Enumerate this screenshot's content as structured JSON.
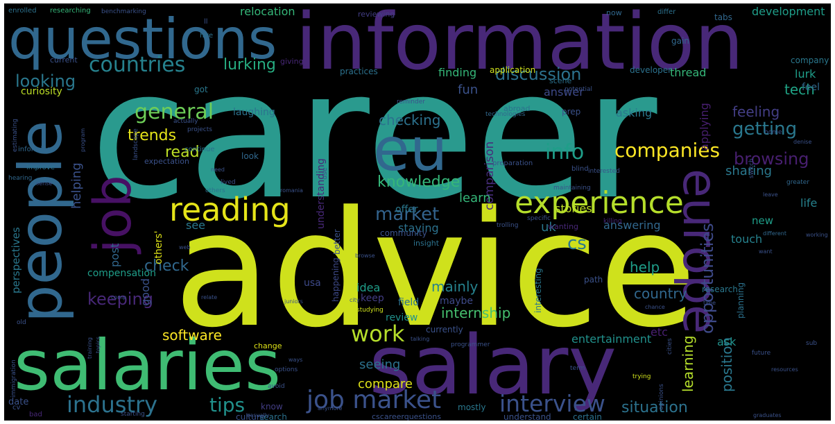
{
  "palette": {
    "canvas_bg": "#000000",
    "page_bg": "#ffffff"
  },
  "words": [
    {
      "text": "career",
      "color": "#2a9a8e"
    },
    {
      "text": "advice",
      "color": "#cfe11c"
    },
    {
      "text": "information",
      "color": "#482878"
    },
    {
      "text": "salary",
      "color": "#482878"
    },
    {
      "text": "salaries",
      "color": "#3fbc73"
    },
    {
      "text": "questions",
      "color": "#31688e"
    },
    {
      "text": "people",
      "color": "#31688e"
    },
    {
      "text": "job",
      "color": "#471164"
    },
    {
      "text": "europe",
      "color": "#482878"
    },
    {
      "text": "eu",
      "color": "#31688e"
    },
    {
      "text": "experience",
      "color": "#b5de2b"
    },
    {
      "text": "reading",
      "color": "#e5e419"
    },
    {
      "text": "job market",
      "color": "#3b528b"
    },
    {
      "text": "industry",
      "color": "#2c728e"
    },
    {
      "text": "interview",
      "color": "#3b528b"
    },
    {
      "text": "countries",
      "color": "#26828e"
    },
    {
      "text": "general",
      "color": "#6ece58"
    },
    {
      "text": "companies",
      "color": "#fde725"
    },
    {
      "text": "market",
      "color": "#33638d"
    },
    {
      "text": "info",
      "color": "#1f9e89"
    },
    {
      "text": "opportunities",
      "color": "#3e4a89"
    },
    {
      "text": "discussion",
      "color": "#2c728e"
    },
    {
      "text": "work",
      "color": "#b5de2b"
    },
    {
      "text": "tips",
      "color": "#21918c"
    },
    {
      "text": "knowledge",
      "color": "#35b779"
    },
    {
      "text": "getting",
      "color": "#2a788e"
    },
    {
      "text": "browsing",
      "color": "#481f70"
    },
    {
      "text": "looking",
      "color": "#2a788e"
    },
    {
      "text": "lurking",
      "color": "#27ad81"
    },
    {
      "text": "keeping",
      "color": "#482878"
    },
    {
      "text": "cs",
      "color": "#2a788e"
    },
    {
      "text": "checking",
      "color": "#2c728e"
    },
    {
      "text": "trends",
      "color": "#e5e419"
    },
    {
      "text": "read",
      "color": "#bddf26"
    },
    {
      "text": "feeling",
      "color": "#433e85"
    },
    {
      "text": "sharing",
      "color": "#2a788e"
    },
    {
      "text": "compare",
      "color": "#dfe318"
    },
    {
      "text": "situation",
      "color": "#2c728e"
    },
    {
      "text": "software",
      "color": "#fde725"
    },
    {
      "text": "internship",
      "color": "#46c06f"
    },
    {
      "text": "learning",
      "color": "#b5de2b"
    },
    {
      "text": "position",
      "color": "#2a788e"
    },
    {
      "text": "tech",
      "color": "#20a486"
    },
    {
      "text": "check",
      "color": "#31688e"
    },
    {
      "text": "helping",
      "color": "#3b528b"
    },
    {
      "text": "comparison",
      "color": "#472d7b"
    },
    {
      "text": "seeing",
      "color": "#2c728e"
    },
    {
      "text": "learn",
      "color": "#35b779"
    },
    {
      "text": "country",
      "color": "#31688e"
    },
    {
      "text": "mainly",
      "color": "#26828e"
    },
    {
      "text": "help",
      "color": "#1f9e89"
    },
    {
      "text": "fun",
      "color": "#3b528b"
    },
    {
      "text": "answer",
      "color": "#3e4a89"
    },
    {
      "text": "uk",
      "color": "#2a788e"
    },
    {
      "text": "answering",
      "color": "#31688e"
    },
    {
      "text": "staying",
      "color": "#2c728e"
    },
    {
      "text": "applying",
      "color": "#481f70"
    },
    {
      "text": "asking",
      "color": "#2a788e"
    },
    {
      "text": "finding",
      "color": "#35b779"
    },
    {
      "text": "thread",
      "color": "#35b779"
    },
    {
      "text": "lurk",
      "color": "#1f9e89"
    },
    {
      "text": "development",
      "color": "#1f9e89"
    },
    {
      "text": "relocation",
      "color": "#35b779"
    },
    {
      "text": "perspectives",
      "color": "#2a788e"
    },
    {
      "text": "curiosity",
      "color": "#bddf26"
    },
    {
      "text": "laughing",
      "color": "#2c728e"
    },
    {
      "text": "offer",
      "color": "#2a788e"
    },
    {
      "text": "understanding",
      "color": "#482878"
    },
    {
      "text": "stories",
      "color": "#bddf26"
    },
    {
      "text": "see",
      "color": "#2a788e"
    },
    {
      "text": "post",
      "color": "#31688e"
    },
    {
      "text": "good",
      "color": "#3b528b"
    },
    {
      "text": "others'",
      "color": "#dfe318"
    },
    {
      "text": "compensation",
      "color": "#1f9e89"
    },
    {
      "text": "idea",
      "color": "#1f9e89"
    },
    {
      "text": "keep",
      "color": "#433e85"
    },
    {
      "text": "usa",
      "color": "#3e4a89"
    },
    {
      "text": "field",
      "color": "#2c728e"
    },
    {
      "text": "maybe",
      "color": "#3e4a89"
    },
    {
      "text": "review",
      "color": "#21918c"
    },
    {
      "text": "entertainment",
      "color": "#21918c"
    },
    {
      "text": "etc",
      "color": "#481f70"
    },
    {
      "text": "ask",
      "color": "#21918c"
    },
    {
      "text": "touch",
      "color": "#26828e"
    },
    {
      "text": "new",
      "color": "#1f9e89"
    },
    {
      "text": "life",
      "color": "#26828e"
    },
    {
      "text": "feel",
      "color": "#31688e"
    },
    {
      "text": "company",
      "color": "#2a788e"
    },
    {
      "text": "developer",
      "color": "#2c728e"
    },
    {
      "text": "practices",
      "color": "#2c728e"
    },
    {
      "text": "application",
      "color": "#cfe11c"
    },
    {
      "text": "culture",
      "color": "#3b528b"
    },
    {
      "text": "know",
      "color": "#433e85"
    },
    {
      "text": "search",
      "color": "#2c728e"
    },
    {
      "text": "date",
      "color": "#3b528b"
    },
    {
      "text": "better",
      "color": "#3b528b"
    },
    {
      "text": "happening",
      "color": "#3e4a89"
    },
    {
      "text": "interesting",
      "color": "#2a788e"
    },
    {
      "text": "planning",
      "color": "#2c728e"
    },
    {
      "text": "research",
      "color": "#2a788e"
    },
    {
      "text": "path",
      "color": "#3b528b"
    },
    {
      "text": "mostly",
      "color": "#2a788e"
    },
    {
      "text": "understand",
      "color": "#3b528b"
    },
    {
      "text": "certain",
      "color": "#2c728e"
    },
    {
      "text": "cscareerquestions",
      "color": "#3b528b"
    },
    {
      "text": "currently",
      "color": "#3b528b"
    },
    {
      "text": "change",
      "color": "#dfe318"
    },
    {
      "text": "look",
      "color": "#31688e"
    },
    {
      "text": "scene",
      "color": "#2c728e"
    },
    {
      "text": "prep",
      "color": "#3b528b"
    },
    {
      "text": "got",
      "color": "#2a788e"
    },
    {
      "text": "reviewing",
      "color": "#433e85"
    },
    {
      "text": "gain",
      "color": "#31688e"
    },
    {
      "text": "now",
      "color": "#31688e"
    },
    {
      "text": "differ",
      "color": "#2c728e"
    },
    {
      "text": "tabs",
      "color": "#31688e"
    },
    {
      "text": "hire",
      "color": "#2c728e"
    },
    {
      "text": "current",
      "color": "#3b528b"
    },
    {
      "text": "giving",
      "color": "#482878"
    },
    {
      "text": "enrolled",
      "color": "#2c728e"
    },
    {
      "text": "researching",
      "color": "#35b779"
    },
    {
      "text": "benchmarking",
      "color": "#3b528b"
    },
    {
      "text": "ll",
      "color": "#3b528b"
    },
    {
      "text": "abroad",
      "color": "#2c728e"
    },
    {
      "text": "actually",
      "color": "#3b528b"
    },
    {
      "text": "projects",
      "color": "#3b528b"
    },
    {
      "text": "technologies",
      "color": "#31688e"
    },
    {
      "text": "reminder",
      "color": "#3b528b"
    },
    {
      "text": "potential",
      "color": "#3b528b"
    },
    {
      "text": "estimating",
      "color": "#3b528b"
    },
    {
      "text": "program",
      "color": "#3b528b"
    },
    {
      "text": "informing",
      "color": "#31688e"
    },
    {
      "text": "landscape",
      "color": "#3b528b"
    },
    {
      "text": "continue",
      "color": "#2c728e"
    },
    {
      "text": "improve",
      "color": "#2c728e"
    },
    {
      "text": "expectation",
      "color": "#3b528b"
    },
    {
      "text": "preparation",
      "color": "#3b528b"
    },
    {
      "text": "interested",
      "color": "#3b528b"
    },
    {
      "text": "blind",
      "color": "#3b528b"
    },
    {
      "text": "denise",
      "color": "#3b528b"
    },
    {
      "text": "home",
      "color": "#3b528b"
    },
    {
      "text": "hearing",
      "color": "#31688e"
    },
    {
      "text": "sense",
      "color": "#3b528b"
    },
    {
      "text": "need",
      "color": "#3b528b"
    },
    {
      "text": "lived",
      "color": "#3b528b"
    },
    {
      "text": "others",
      "color": "#2c728e"
    },
    {
      "text": "romania",
      "color": "#3b528b"
    },
    {
      "text": "use",
      "color": "#3b528b"
    },
    {
      "text": "maintaining",
      "color": "#3b528b"
    },
    {
      "text": "switch",
      "color": "#3b528b"
    },
    {
      "text": "leave",
      "color": "#3b528b"
    },
    {
      "text": "greater",
      "color": "#31688e"
    },
    {
      "text": "specific",
      "color": "#3b528b"
    },
    {
      "text": "trolling",
      "color": "#3b528b"
    },
    {
      "text": "killing",
      "color": "#482878"
    },
    {
      "text": "different",
      "color": "#31688e"
    },
    {
      "text": "working",
      "color": "#3b528b"
    },
    {
      "text": "want",
      "color": "#3b528b"
    },
    {
      "text": "wanting",
      "color": "#482878"
    },
    {
      "text": "community",
      "color": "#3b528b"
    },
    {
      "text": "web",
      "color": "#3b528b"
    },
    {
      "text": "insight",
      "color": "#2c728e"
    },
    {
      "text": "browse",
      "color": "#3b528b"
    },
    {
      "text": "comp",
      "color": "#3b528b"
    },
    {
      "text": "relate",
      "color": "#3b528b"
    },
    {
      "text": "juniors",
      "color": "#3b528b"
    },
    {
      "text": "city",
      "color": "#3b528b"
    },
    {
      "text": "chance",
      "color": "#3b528b"
    },
    {
      "text": "time",
      "color": "#3b528b"
    },
    {
      "text": "old",
      "color": "#3b528b"
    },
    {
      "text": "studying",
      "color": "#cfe11c"
    },
    {
      "text": "talking",
      "color": "#3b528b"
    },
    {
      "text": "programmer",
      "color": "#3b528b"
    },
    {
      "text": "cities",
      "color": "#3b528b"
    },
    {
      "text": "future",
      "color": "#3b528b"
    },
    {
      "text": "sub",
      "color": "#3b528b"
    },
    {
      "text": "immigration",
      "color": "#3b528b"
    },
    {
      "text": "training",
      "color": "#3b528b"
    },
    {
      "text": "topics",
      "color": "#3b528b"
    },
    {
      "text": "ways",
      "color": "#3b528b"
    },
    {
      "text": "options",
      "color": "#3b528b"
    },
    {
      "text": "term",
      "color": "#3b528b"
    },
    {
      "text": "resources",
      "color": "#3b528b"
    },
    {
      "text": "trying",
      "color": "#cfe11c"
    },
    {
      "text": "cv",
      "color": "#3b528b"
    },
    {
      "text": "bad",
      "color": "#482878"
    },
    {
      "text": "starting",
      "color": "#3b528b"
    },
    {
      "text": "casually",
      "color": "#3b528b"
    },
    {
      "text": "avoid",
      "color": "#3b528b"
    },
    {
      "text": "anymore",
      "color": "#3b528b"
    },
    {
      "text": "opinions",
      "color": "#3b528b"
    },
    {
      "text": "graduates",
      "color": "#3b528b"
    }
  ]
}
